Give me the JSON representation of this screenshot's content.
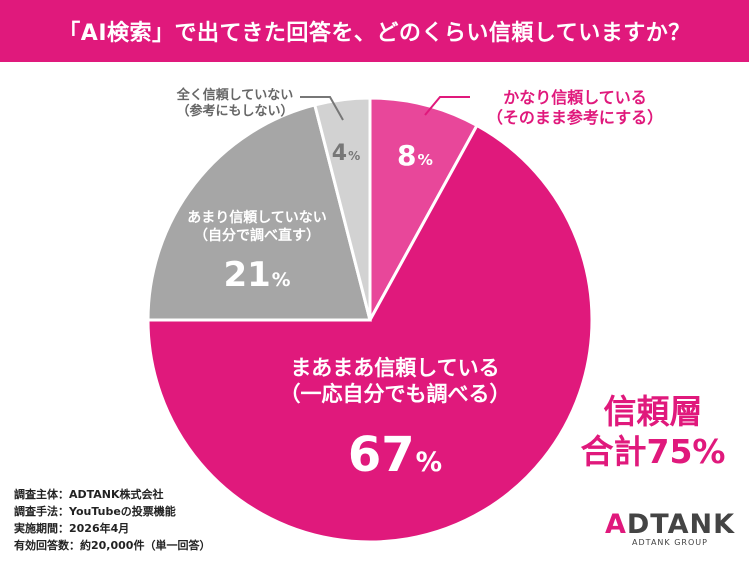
{
  "title": "「AI検索」で出てきた回答を、どのくらい信頼していますか？",
  "chart_data": {
    "type": "pie",
    "title": "「AI検索」で出てきた回答を、どのくらい信頼していますか？",
    "slices": [
      {
        "id": "s8",
        "line1": "かなり信頼している",
        "line2": "（そのまま参考にする）",
        "value": 8,
        "pct_label": "8",
        "color": "#e8479a"
      },
      {
        "id": "s67",
        "line1": "まあまあ信頼している",
        "line2": "（一応自分でも調べる）",
        "value": 67,
        "pct_label": "67",
        "color": "#e0197c"
      },
      {
        "id": "s21",
        "line1": "あまり信頼していない",
        "line2": "（自分で調べ直す）",
        "value": 21,
        "pct_label": "21",
        "color": "#a6a6a6"
      },
      {
        "id": "s4",
        "line1": "全く信頼していない",
        "line2": "（参考にもしない）",
        "value": 4,
        "pct_label": "4",
        "color": "#d2d2d2"
      }
    ],
    "percent_sign": "%"
  },
  "total": {
    "line1": "信頼層",
    "line2": "合計75%"
  },
  "survey_info": [
    "調査主体：ADTANK株式会社",
    "調査手法：YouTubeの投票機能",
    "実施期間：2026年4月",
    "有効回答数：約20,000件（単一回答）"
  ],
  "logo": {
    "accent": "A",
    "rest": "DTANK",
    "sub": "ADTANK GROUP"
  }
}
